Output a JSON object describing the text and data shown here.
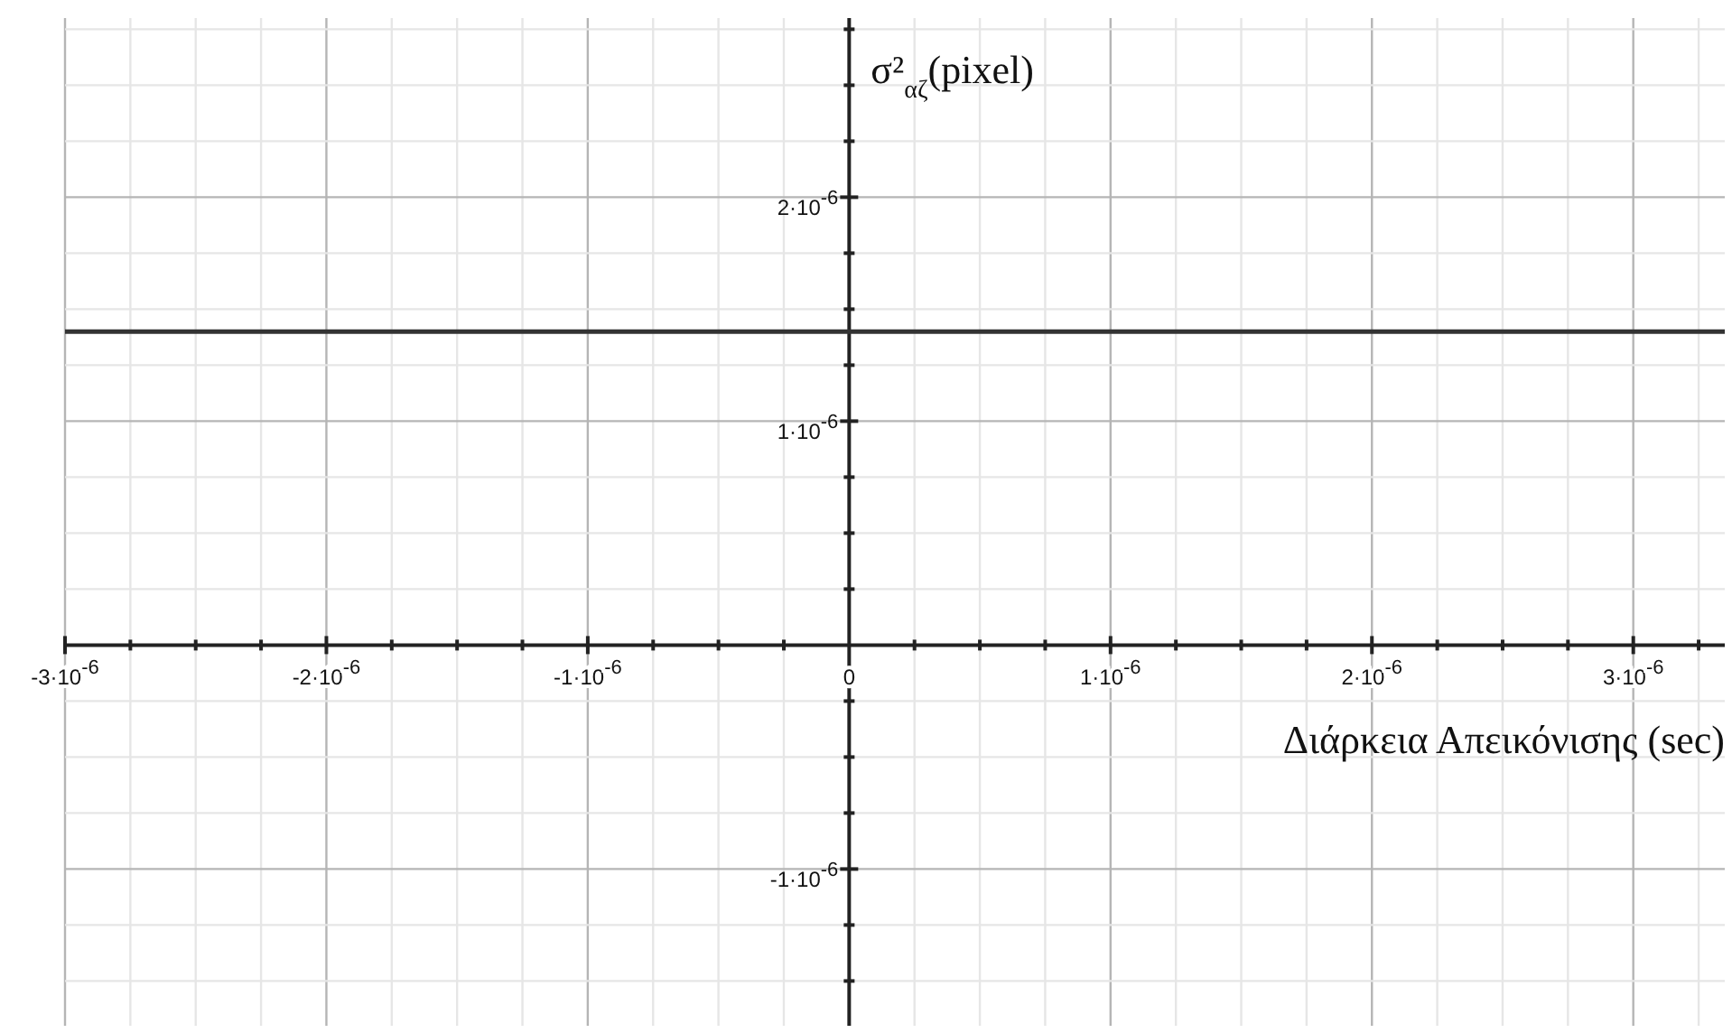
{
  "chart_data": {
    "type": "line",
    "xlabel": "Διάρκεια Απεικόνισης (sec)",
    "ylabel": "σ²$_{αζ}$(pixel)",
    "x": [
      -3e-06,
      3.35e-06
    ],
    "series": [
      {
        "color": "#333333",
        "values": [
          1.4e-06,
          1.4e-06
        ]
      }
    ],
    "xlim": [
      -3e-06,
      3.35e-06
    ],
    "ylim": [
      -1.7e-06,
      2.8e-06
    ],
    "xticks": [
      {
        "value": -3e-06,
        "label": "-3·10$^{-6}$"
      },
      {
        "value": -2.75e-06,
        "label": null
      },
      {
        "value": -2.5e-06,
        "label": null
      },
      {
        "value": -2.25e-06,
        "label": null
      },
      {
        "value": -2e-06,
        "label": "-2·10$^{-6}$"
      },
      {
        "value": -1.75e-06,
        "label": null
      },
      {
        "value": -1.5e-06,
        "label": null
      },
      {
        "value": -1.25e-06,
        "label": null
      },
      {
        "value": -1e-06,
        "label": "-1·10$^{-6}$"
      },
      {
        "value": -7.5e-07,
        "label": null
      },
      {
        "value": -5e-07,
        "label": null
      },
      {
        "value": -2.5e-07,
        "label": null
      },
      0,
      {
        "value": 2.5e-07,
        "label": null
      },
      {
        "value": 5e-07,
        "label": null
      },
      {
        "value": 7.5e-07,
        "label": null
      },
      {
        "value": 1e-06,
        "label": "1·10$^{-6}$"
      },
      {
        "value": 1.25e-06,
        "label": null
      },
      {
        "value": 1.5e-06,
        "label": null
      },
      {
        "value": 1.75e-06,
        "label": null
      },
      {
        "value": 2e-06,
        "label": "2·10$^{-6}$"
      },
      {
        "value": 2.25e-06,
        "label": null
      },
      {
        "value": 2.5e-06,
        "label": null
      },
      {
        "value": 2.75e-06,
        "label": null
      },
      {
        "value": 3e-06,
        "label": "3·10$^{-6}$"
      },
      {
        "value": 3.25e-06,
        "label": null
      }
    ],
    "yticks": [
      {
        "value": -1.5e-06,
        "label": null
      },
      {
        "value": -1.25e-06,
        "label": null
      },
      {
        "value": -1e-06,
        "label": "-1·10$^{-6}$"
      },
      {
        "value": -7.5e-07,
        "label": null
      },
      {
        "value": -5e-07,
        "label": null
      },
      {
        "value": -2.5e-07,
        "label": null
      },
      {
        "value": 2.5e-07,
        "label": null
      },
      {
        "value": 5e-07,
        "label": null
      },
      {
        "value": 7.5e-07,
        "label": null
      },
      {
        "value": 1e-06,
        "label": "1·10$^{-6}$"
      },
      {
        "value": 1.25e-06,
        "label": null
      },
      {
        "value": 1.5e-06,
        "label": null
      },
      {
        "value": 1.75e-06,
        "label": null
      },
      {
        "value": 2e-06,
        "label": "2·10$^{-6}$"
      },
      {
        "value": 2.25e-06,
        "label": null
      },
      {
        "value": 2.5e-06,
        "label": null
      },
      {
        "value": 2.75e-06,
        "label": null
      }
    ],
    "grid": true,
    "line_style": "solid"
  }
}
